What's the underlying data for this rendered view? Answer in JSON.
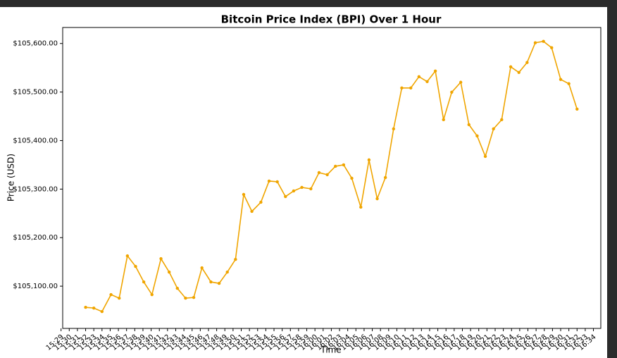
{
  "chart_data": {
    "type": "line",
    "title": "Bitcoin Price Index (BPI) Over 1 Hour",
    "x_label": "Time",
    "y_label": "Price (USD)",
    "x": [
      932.0,
      933.0,
      934.0,
      935.1,
      936.1,
      937.1,
      938.1,
      939.1,
      940.1,
      941.2,
      942.2,
      943.2,
      944.2,
      945.2,
      946.2,
      947.3,
      948.3,
      949.3,
      950.3,
      951.3,
      952.3,
      953.4,
      954.4,
      955.4,
      956.4,
      957.4,
      958.4,
      959.5,
      960.5,
      961.5,
      962.5,
      963.5,
      964.5,
      965.6,
      966.6,
      967.6,
      968.6,
      969.6,
      970.6,
      971.7,
      972.7,
      973.7,
      974.7,
      975.7,
      976.7,
      977.8,
      978.8,
      979.8,
      980.8,
      981.8,
      982.8,
      983.9,
      984.9,
      985.9,
      986.9,
      987.9,
      988.9,
      990.0,
      991.0,
      992.0
    ],
    "series": [
      {
        "color": "#f0a500",
        "values": [
          105056.4,
          105054.9,
          105047.7,
          105082.6,
          105075.3,
          105162.5,
          105140.7,
          105108.7,
          105082.6,
          105156.7,
          105129.1,
          105095.6,
          105075.3,
          105076.7,
          105137.8,
          105108.7,
          105105.8,
          105129.1,
          105155.2,
          105288.9,
          105254.1,
          105273.0,
          105316.6,
          105315.1,
          105284.6,
          105296.2,
          105303.5,
          105300.6,
          105334.0,
          105329.7,
          105347.1,
          105350.0,
          105322.4,
          105262.8,
          105360.2,
          105280.2,
          105323.8,
          105424.1,
          105508.4,
          105508.4,
          105531.7,
          105521.5,
          105543.3,
          105443.0,
          105499.7,
          105520.1,
          105432.8,
          105409.6,
          105367.4,
          105424.1,
          105443.0,
          105552.0,
          105540.4,
          105560.8,
          105601.5,
          105604.4,
          105591.3,
          105525.9,
          105517.2,
          105464.8
        ]
      }
    ],
    "xlim": [
      929.2,
      994.9
    ],
    "xticks": [
      {
        "value": 929,
        "label": "15:29"
      },
      {
        "value": 930,
        "label": "15:30"
      },
      {
        "value": 931,
        "label": "15:31"
      },
      {
        "value": 932,
        "label": "15:32"
      },
      {
        "value": 933,
        "label": "15:33"
      },
      {
        "value": 934,
        "label": "15:34"
      },
      {
        "value": 935,
        "label": "15:35"
      },
      {
        "value": 936,
        "label": "15:36"
      },
      {
        "value": 937,
        "label": "15:37"
      },
      {
        "value": 938,
        "label": "15:38"
      },
      {
        "value": 939,
        "label": "15:39"
      },
      {
        "value": 940,
        "label": "15:40"
      },
      {
        "value": 941,
        "label": "15:41"
      },
      {
        "value": 942,
        "label": "15:42"
      },
      {
        "value": 943,
        "label": "15:43"
      },
      {
        "value": 944,
        "label": "15:44"
      },
      {
        "value": 945,
        "label": "15:45"
      },
      {
        "value": 946,
        "label": "15:46"
      },
      {
        "value": 947,
        "label": "15:47"
      },
      {
        "value": 948,
        "label": "15:48"
      },
      {
        "value": 949,
        "label": "15:49"
      },
      {
        "value": 950,
        "label": "15:50"
      },
      {
        "value": 951,
        "label": "15:51"
      },
      {
        "value": 952,
        "label": "15:52"
      },
      {
        "value": 953,
        "label": "15:53"
      },
      {
        "value": 954,
        "label": "15:54"
      },
      {
        "value": 955,
        "label": "15:55"
      },
      {
        "value": 956,
        "label": "15:56"
      },
      {
        "value": 957,
        "label": "15:57"
      },
      {
        "value": 958,
        "label": "15:58"
      },
      {
        "value": 959,
        "label": "15:59"
      },
      {
        "value": 960,
        "label": "16:00"
      },
      {
        "value": 961,
        "label": "16:01"
      },
      {
        "value": 962,
        "label": "16:02"
      },
      {
        "value": 963,
        "label": "16:03"
      },
      {
        "value": 964,
        "label": "16:04"
      },
      {
        "value": 965,
        "label": "16:05"
      },
      {
        "value": 966,
        "label": "16:06"
      },
      {
        "value": 967,
        "label": "16:07"
      },
      {
        "value": 968,
        "label": "16:08"
      },
      {
        "value": 969,
        "label": "16:09"
      },
      {
        "value": 970,
        "label": "16:10"
      },
      {
        "value": 971,
        "label": "16:11"
      },
      {
        "value": 972,
        "label": "16:12"
      },
      {
        "value": 973,
        "label": "16:13"
      },
      {
        "value": 974,
        "label": "16:14"
      },
      {
        "value": 975,
        "label": "16:15"
      },
      {
        "value": 976,
        "label": "16:16"
      },
      {
        "value": 977,
        "label": "16:17"
      },
      {
        "value": 978,
        "label": "16:18"
      },
      {
        "value": 979,
        "label": "16:19"
      },
      {
        "value": 980,
        "label": "16:20"
      },
      {
        "value": 981,
        "label": "16:21"
      },
      {
        "value": 982,
        "label": "16:22"
      },
      {
        "value": 983,
        "label": "16:23"
      },
      {
        "value": 984,
        "label": "16:24"
      },
      {
        "value": 985,
        "label": "16:25"
      },
      {
        "value": 986,
        "label": "16:26"
      },
      {
        "value": 987,
        "label": "16:27"
      },
      {
        "value": 988,
        "label": "16:28"
      },
      {
        "value": 989,
        "label": "16:29"
      },
      {
        "value": 990,
        "label": "16:30"
      },
      {
        "value": 991,
        "label": "16:31"
      },
      {
        "value": 992,
        "label": "16:32"
      },
      {
        "value": 993,
        "label": "16:33"
      },
      {
        "value": 994,
        "label": "16:34"
      }
    ],
    "ylim": [
      105013,
      105633
    ],
    "yticks": [
      {
        "value": 105100,
        "label": "$105,100.00"
      },
      {
        "value": 105200,
        "label": "$105,200.00"
      },
      {
        "value": 105300,
        "label": "$105,300.00"
      },
      {
        "value": 105400,
        "label": "$105,400.00"
      },
      {
        "value": 105500,
        "label": "$105,500.00"
      },
      {
        "value": 105600,
        "label": "$105,600.00"
      }
    ],
    "grid": false,
    "markers": true
  }
}
